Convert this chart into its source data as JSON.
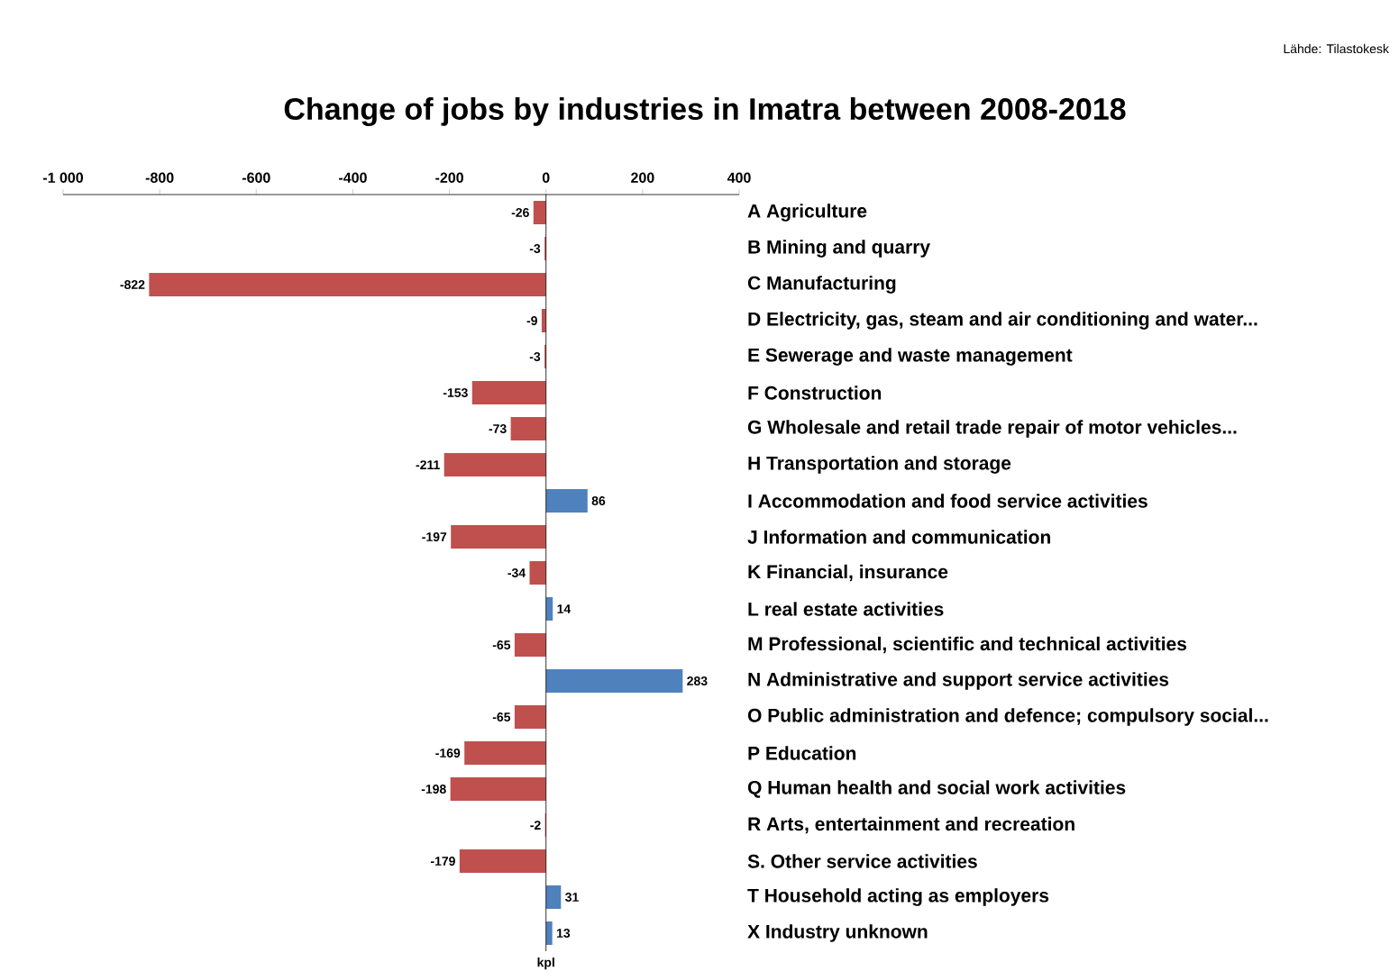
{
  "chart_data": {
    "type": "bar",
    "orientation": "horizontal",
    "title": "Change of jobs by industries in Imatra between 2008-2018",
    "categories": [
      "A Agriculture",
      "B Mining and quarry",
      "C Manufacturing",
      "D Electricity, gas, steam and air conditioning and water...",
      "E Sewerage and waste management",
      "F Construction",
      "G Wholesale and retail trade repair of motor vehicles...",
      "H Transportation and storage",
      "I Accommodation and food service activities",
      "J Information and communication",
      "K Financial, insurance",
      "L real estate activities",
      "M Professional, scientific and technical activities",
      "N Administrative and support service activities",
      "O Public administration and defence; compulsory social...",
      "P Education",
      "Q Human health and social work activities",
      "R Arts, entertainment and recreation",
      "S. Other service activities",
      "T Household acting as employers",
      "X Industry unknown"
    ],
    "values": [
      -26,
      -3,
      -822,
      -9,
      -3,
      -153,
      -73,
      -211,
      86,
      -197,
      -34,
      14,
      -65,
      283,
      -65,
      -169,
      -198,
      -2,
      -179,
      31,
      13
    ],
    "value_labels": [
      "-26",
      "-3",
      "-822",
      "-9",
      "-3",
      "-153",
      "-73",
      "-211",
      "86",
      "-197",
      "-34",
      "14",
      "-65",
      "283",
      "-65",
      "-169",
      "-198",
      "-2",
      "-179",
      "31",
      "13"
    ],
    "colors": [
      "#c0504d",
      "#c0504d",
      "#c0504d",
      "#c0504d",
      "#c0504d",
      "#c0504d",
      "#c0504d",
      "#c0504d",
      "#4f81bd",
      "#c0504d",
      "#c0504d",
      "#4f81bd",
      "#c0504d",
      "#4f81bd",
      "#c0504d",
      "#c0504d",
      "#c0504d",
      "#c0504d",
      "#c0504d",
      "#4f81bd",
      "#4f81bd"
    ],
    "xlim": [
      -1000,
      400
    ],
    "xticks": [
      {
        "value": -1000,
        "label": "-1 000"
      },
      -800,
      -600,
      -400,
      -200,
      0,
      200,
      400
    ],
    "xlabel": "kpl",
    "annotations": [
      "Lähde: Tilastokesk"
    ]
  }
}
